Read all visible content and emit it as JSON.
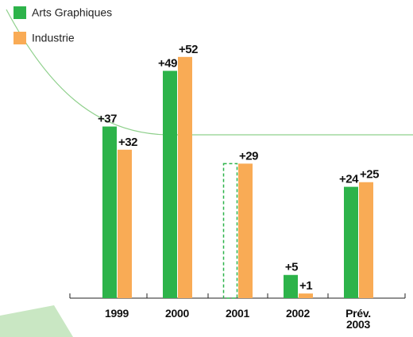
{
  "chart_data": {
    "type": "bar",
    "categories": [
      "1999",
      "2000",
      "2001",
      "2002",
      "Prév. 2003"
    ],
    "series": [
      {
        "name": "Arts Graphiques",
        "color": "#2db34a",
        "values": [
          37,
          49,
          29,
          5,
          24
        ],
        "value_labels": [
          "+37",
          "+49",
          null,
          "+5",
          "+24"
        ],
        "dashed": [
          false,
          false,
          true,
          false,
          false
        ]
      },
      {
        "name": "Industrie",
        "color": "#f9ab55",
        "values": [
          32,
          52,
          29,
          1,
          25
        ],
        "value_labels": [
          "+32",
          "+52",
          "+29",
          "+1",
          "+25"
        ]
      }
    ],
    "legend": "top-left"
  }
}
